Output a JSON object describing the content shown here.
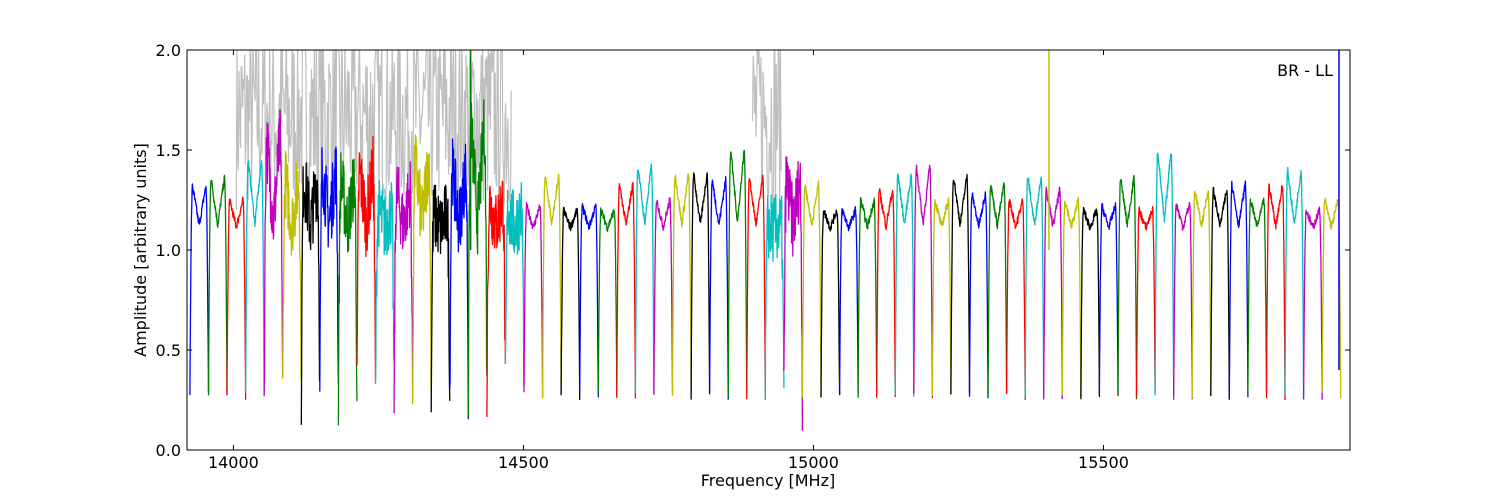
{
  "chart_data": {
    "type": "line",
    "title": "",
    "xlabel": "Frequency [MHz]",
    "ylabel": "Amplitude [arbitrary units]",
    "xlim": [
      13920,
      15925
    ],
    "ylim": [
      0.0,
      2.0
    ],
    "grid": false,
    "annotation": "BR - LL",
    "x_ticks": [
      14000,
      14500,
      15000,
      15500
    ],
    "x_tick_labels": [
      "14000",
      "14500",
      "15000",
      "15500"
    ],
    "y_ticks": [
      0.0,
      0.5,
      1.0,
      1.5,
      2.0
    ],
    "y_tick_labels": [
      "0.0",
      "0.5",
      "1.0",
      "1.5",
      "2.0"
    ],
    "colors": {
      "background_raw": "#bfbfbf",
      "cycle": [
        "#0000ff",
        "#008000",
        "#ff0000",
        "#00bfbf",
        "#bf00bf",
        "#bfbf00",
        "#000000"
      ]
    },
    "channels": {
      "start_mhz": 13925,
      "width_mhz": 32,
      "count": 62,
      "edge_low": 0.27,
      "center": [
        1.32,
        1.36,
        1.25,
        1.45,
        1.55,
        1.35,
        1.35,
        1.4,
        1.35,
        1.4,
        1.2,
        1.3,
        1.45,
        1.18,
        1.4,
        1.62,
        1.25,
        1.2,
        1.22,
        1.37,
        1.2,
        1.22,
        1.2,
        1.33,
        1.42,
        1.25,
        1.38,
        1.38,
        1.35,
        1.5,
        1.36,
        1.12,
        1.35,
        1.33,
        1.2,
        1.2,
        1.25,
        1.3,
        1.38,
        1.42,
        1.25,
        1.37,
        1.28,
        1.33,
        1.25,
        1.37,
        1.3,
        1.25,
        1.2,
        1.22,
        1.36,
        1.2,
        1.5,
        1.23,
        1.3,
        1.3,
        1.33,
        1.25,
        1.32,
        1.4,
        1.2,
        1.25
      ]
    },
    "spikes": [
      {
        "x": 14409,
        "y_top": 2.0,
        "y_bottom": 1.0,
        "color": "#008000"
      },
      {
        "x": 15406,
        "y_top": 2.0,
        "y_bottom": 1.0,
        "color": "#bfbf00"
      },
      {
        "x": 15906,
        "y_top": 2.0,
        "y_bottom": 0.4,
        "color": "#0000ff"
      }
    ],
    "raw_noise_regions": [
      {
        "x_start": 14005,
        "x_end": 14480
      },
      {
        "x_start": 14895,
        "x_end": 14945
      }
    ]
  }
}
